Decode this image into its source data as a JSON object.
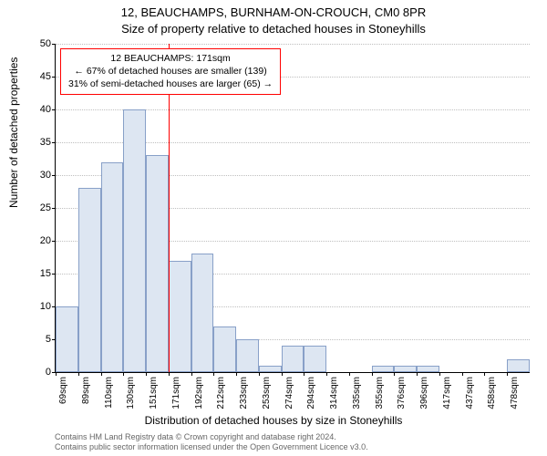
{
  "title_line1": "12, BEAUCHAMPS, BURNHAM-ON-CROUCH, CM0 8PR",
  "title_line2": "Size of property relative to detached houses in Stoneyhills",
  "y_axis_label": "Number of detached properties",
  "x_axis_label": "Distribution of detached houses by size in Stoneyhills",
  "footer_line1": "Contains HM Land Registry data © Crown copyright and database right 2024.",
  "footer_line2": "Contains public sector information licensed under the Open Government Licence v3.0.",
  "chart": {
    "type": "histogram",
    "ylim": [
      0,
      50
    ],
    "ytick_step": 5,
    "yticks": [
      0,
      5,
      10,
      15,
      20,
      25,
      30,
      35,
      40,
      45,
      50
    ],
    "bar_fill": "#dde6f2",
    "bar_stroke": "#88a0c8",
    "grid_color": "#bfbfbf",
    "background": "#ffffff",
    "marker_color": "#ff0000",
    "marker_x_sqm": 171,
    "x_range_sqm": [
      69,
      499
    ],
    "x_tick_labels": [
      "69sqm",
      "89sqm",
      "110sqm",
      "130sqm",
      "151sqm",
      "171sqm",
      "192sqm",
      "212sqm",
      "233sqm",
      "253sqm",
      "274sqm",
      "294sqm",
      "314sqm",
      "335sqm",
      "355sqm",
      "376sqm",
      "396sqm",
      "417sqm",
      "437sqm",
      "458sqm",
      "478sqm"
    ],
    "bars": [
      {
        "x_sqm": 69,
        "value": 10
      },
      {
        "x_sqm": 89,
        "value": 28
      },
      {
        "x_sqm": 110,
        "value": 32
      },
      {
        "x_sqm": 130,
        "value": 40
      },
      {
        "x_sqm": 151,
        "value": 33
      },
      {
        "x_sqm": 171,
        "value": 17
      },
      {
        "x_sqm": 192,
        "value": 18
      },
      {
        "x_sqm": 212,
        "value": 7
      },
      {
        "x_sqm": 233,
        "value": 5
      },
      {
        "x_sqm": 253,
        "value": 1
      },
      {
        "x_sqm": 274,
        "value": 4
      },
      {
        "x_sqm": 294,
        "value": 4
      },
      {
        "x_sqm": 314,
        "value": 0
      },
      {
        "x_sqm": 335,
        "value": 0
      },
      {
        "x_sqm": 355,
        "value": 1
      },
      {
        "x_sqm": 376,
        "value": 1
      },
      {
        "x_sqm": 396,
        "value": 1
      },
      {
        "x_sqm": 417,
        "value": 0
      },
      {
        "x_sqm": 437,
        "value": 0
      },
      {
        "x_sqm": 458,
        "value": 0
      },
      {
        "x_sqm": 478,
        "value": 2
      }
    ]
  },
  "annotation": {
    "line1": "12 BEAUCHAMPS: 171sqm",
    "line2": "← 67% of detached houses are smaller (139)",
    "line3": "31% of semi-detached houses are larger (65) →"
  }
}
